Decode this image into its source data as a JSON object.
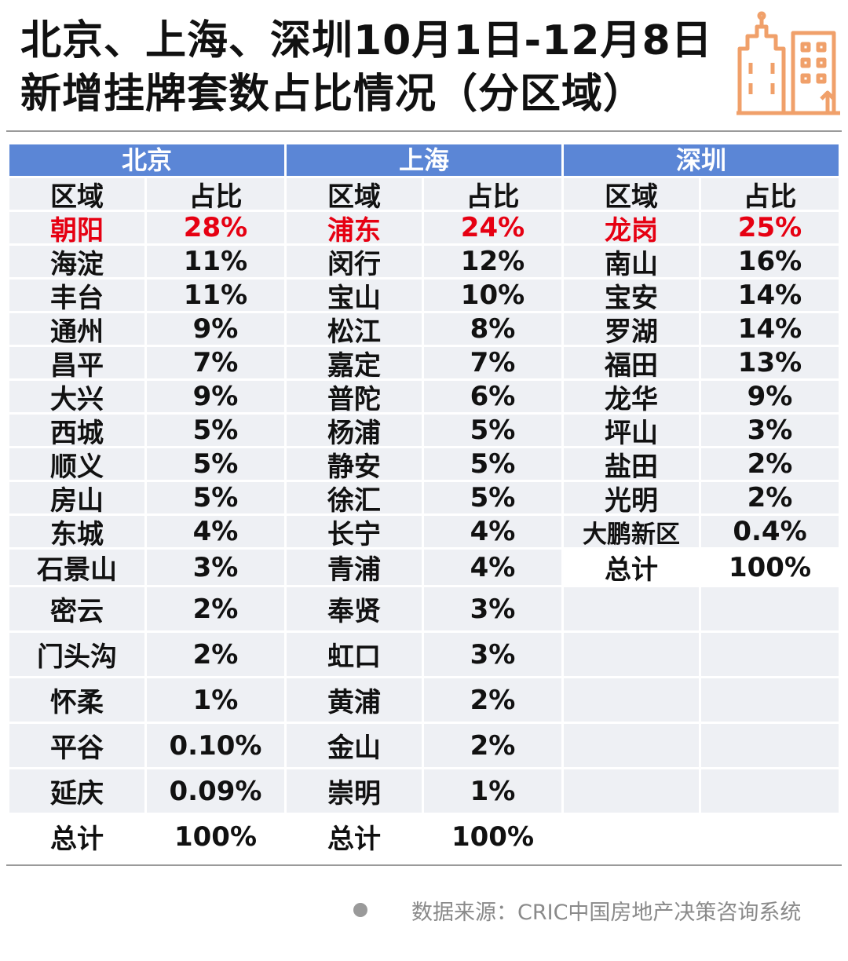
{
  "title": {
    "line1": "北京、上海、深圳10月1日-12月8日",
    "line2": "新增挂牌套数占比情况（分区域）"
  },
  "logo": {
    "icon": "buildings-icon",
    "color": "#f0a06a"
  },
  "colors": {
    "header_bg": "#5b86d6",
    "row_bg": "#eef0f4",
    "highlight": "#e60012"
  },
  "chart_data": {
    "type": "table",
    "columns": [
      "区域",
      "占比"
    ],
    "cities": [
      {
        "name": "北京",
        "col_region": "区域",
        "col_share": "占比",
        "rows": [
          {
            "region": "朝阳",
            "share": "28%",
            "highlight": true
          },
          {
            "region": "海淀",
            "share": "11%"
          },
          {
            "region": "丰台",
            "share": "11%"
          },
          {
            "region": "通州",
            "share": "9%"
          },
          {
            "region": "昌平",
            "share": "7%"
          },
          {
            "region": "大兴",
            "share": "9%"
          },
          {
            "region": "西城",
            "share": "5%"
          },
          {
            "region": "顺义",
            "share": "5%"
          },
          {
            "region": "房山",
            "share": "5%"
          },
          {
            "region": "东城",
            "share": "4%"
          },
          {
            "region": "石景山",
            "share": "3%"
          },
          {
            "region": "密云",
            "share": "2%"
          },
          {
            "region": "门头沟",
            "share": "2%"
          },
          {
            "region": "怀柔",
            "share": "1%"
          },
          {
            "region": "平谷",
            "share": "0.10%"
          },
          {
            "region": "延庆",
            "share": "0.09%"
          },
          {
            "region": "总计",
            "share": "100%",
            "total": true
          }
        ]
      },
      {
        "name": "上海",
        "col_region": "区域",
        "col_share": "占比",
        "rows": [
          {
            "region": "浦东",
            "share": "24%",
            "highlight": true
          },
          {
            "region": "闵行",
            "share": "12%"
          },
          {
            "region": "宝山",
            "share": "10%"
          },
          {
            "region": "松江",
            "share": "8%"
          },
          {
            "region": "嘉定",
            "share": "7%"
          },
          {
            "region": "普陀",
            "share": "6%"
          },
          {
            "region": "杨浦",
            "share": "5%"
          },
          {
            "region": "静安",
            "share": "5%"
          },
          {
            "region": "徐汇",
            "share": "5%"
          },
          {
            "region": "长宁",
            "share": "4%"
          },
          {
            "region": "青浦",
            "share": "4%"
          },
          {
            "region": "奉贤",
            "share": "3%"
          },
          {
            "region": "虹口",
            "share": "3%"
          },
          {
            "region": "黄浦",
            "share": "2%"
          },
          {
            "region": "金山",
            "share": "2%"
          },
          {
            "region": "崇明",
            "share": "1%"
          },
          {
            "region": "总计",
            "share": "100%",
            "total": true
          }
        ]
      },
      {
        "name": "深圳",
        "col_region": "区域",
        "col_share": "占比",
        "rows": [
          {
            "region": "龙岗",
            "share": "25%",
            "highlight": true
          },
          {
            "region": "南山",
            "share": "16%"
          },
          {
            "region": "宝安",
            "share": "14%"
          },
          {
            "region": "罗湖",
            "share": "14%"
          },
          {
            "region": "福田",
            "share": "13%"
          },
          {
            "region": "龙华",
            "share": "9%"
          },
          {
            "region": "坪山",
            "share": "3%"
          },
          {
            "region": "盐田",
            "share": "2%"
          },
          {
            "region": "光明",
            "share": "2%"
          },
          {
            "region": "大鹏新区",
            "share": "0.4%"
          },
          {
            "region": "总计",
            "share": "100%",
            "total": true
          }
        ]
      }
    ]
  },
  "footer": {
    "source": "数据来源：CRIC中国房地产决策咨询系统"
  }
}
